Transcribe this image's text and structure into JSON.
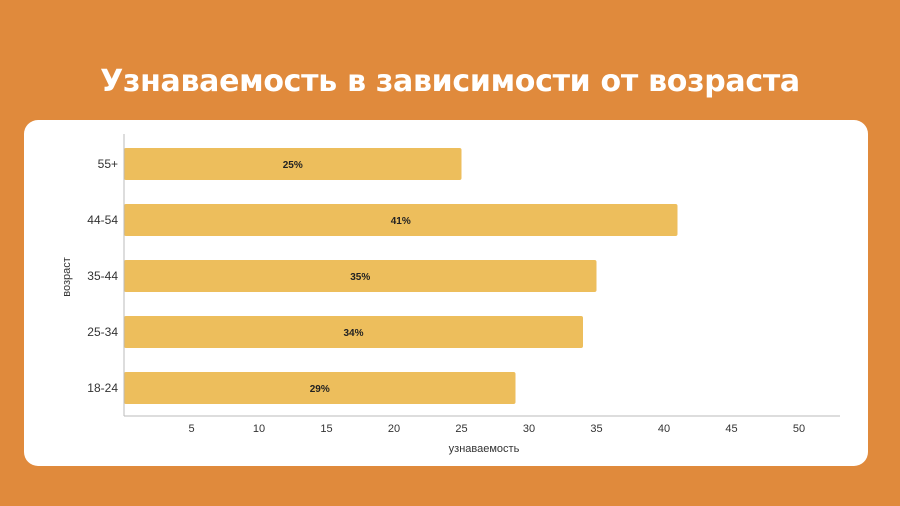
{
  "header": {
    "title": "Узнаваемость в зависимости от возраста"
  },
  "colors": {
    "background": "#E08A3C",
    "card": "#FFFFFF",
    "bar": "#EDBE5C",
    "axis": "#BBBBBB"
  },
  "chart_data": {
    "type": "bar",
    "orientation": "horizontal",
    "categories": [
      "55+",
      "44-54",
      "35-44",
      "25-34",
      "18-24"
    ],
    "values": [
      25,
      41,
      35,
      34,
      29
    ],
    "data_labels": [
      "25%",
      "41%",
      "35%",
      "34%",
      "29%"
    ],
    "xlabel": "узнаваемость",
    "ylabel": "возраст",
    "xticks": [
      5,
      10,
      15,
      20,
      25,
      30,
      35,
      40,
      45,
      50
    ],
    "xlim": [
      0,
      53
    ],
    "grid": false
  }
}
